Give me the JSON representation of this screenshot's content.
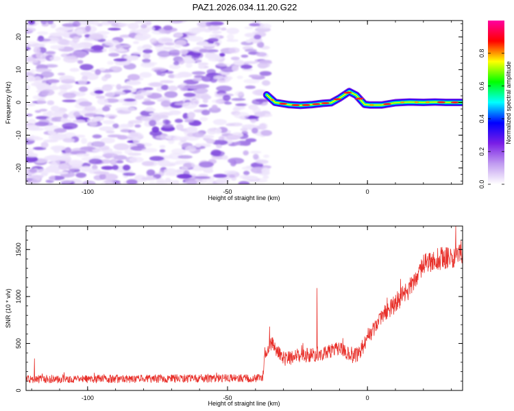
{
  "title": "PAZ1.2026.034.11.20.G22",
  "chart_data": [
    {
      "type": "heatmap",
      "title": "PAZ1.2026.034.11.20.G22",
      "xlabel": "Height of straight line (km)",
      "ylabel": "Frequency (Hz)",
      "xlim": [
        -122,
        34
      ],
      "ylim": [
        -25,
        25
      ],
      "xticks": [
        -100,
        -50,
        0
      ],
      "yticks": [
        -20,
        -10,
        0,
        10,
        20
      ],
      "noise_region_x": [
        -122,
        -36
      ],
      "tone_trace": {
        "x": [
          -36,
          -33,
          -28,
          -24,
          -20,
          -16,
          -13,
          -10,
          -6.5,
          -4,
          -1,
          1,
          5,
          10,
          15,
          20,
          24,
          28,
          34
        ],
        "y": [
          2.3,
          0,
          -0.7,
          -0.9,
          -0.7,
          -0.3,
          -0.1,
          1.3,
          3.3,
          2.2,
          -0.6,
          -0.8,
          -0.8,
          -0.1,
          0.1,
          0,
          0.1,
          0,
          0
        ]
      },
      "colorbar": {
        "label": "Normalized spectral amplitude",
        "range": [
          0,
          1
        ],
        "ticks": [
          "0.0",
          "0.2",
          "0.4",
          "0.6",
          "0.8"
        ],
        "colors": [
          "#ffffff",
          "#c19cf0",
          "#7a1ee6",
          "#0000ff",
          "#00ffff",
          "#00ff00",
          "#ffff00",
          "#ff0000",
          "#ff00a0"
        ]
      }
    },
    {
      "type": "line",
      "xlabel": "Height of straight line (km)",
      "ylabel": "SNR (10 * v/v)",
      "xlim": [
        -122,
        34
      ],
      "ylim": [
        0,
        1750
      ],
      "xticks": [
        -100,
        -50,
        0
      ],
      "yticks": [
        0,
        500,
        1000,
        1500
      ],
      "series_color": "#e8302a",
      "envelope": {
        "x": [
          -122,
          -80,
          -37.5,
          -36.5,
          -34,
          -30,
          -25,
          -20,
          -16,
          -12,
          -10,
          -8,
          -5,
          -3,
          0,
          5,
          10,
          15,
          20,
          25,
          30,
          34
        ],
        "y": [
          120,
          125,
          130,
          420,
          500,
          330,
          360,
          380,
          390,
          430,
          460,
          420,
          370,
          380,
          560,
          780,
          930,
          1080,
          1330,
          1400,
          1420,
          1480
        ],
        "noise": [
          45,
          45,
          45,
          90,
          80,
          75,
          75,
          75,
          75,
          75,
          75,
          85,
          85,
          85,
          85,
          95,
          105,
          110,
          120,
          125,
          130,
          130
        ]
      },
      "spikes": [
        {
          "x": -119,
          "y": 340
        },
        {
          "x": -35,
          "y": 680
        },
        {
          "x": -18,
          "y": 1090
        },
        {
          "x": 31.5,
          "y": 1750
        }
      ]
    }
  ]
}
